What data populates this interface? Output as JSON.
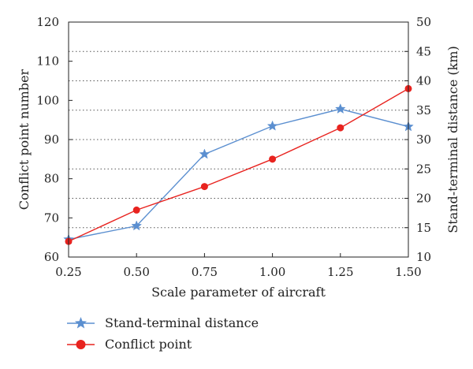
{
  "chart_data": {
    "type": "line",
    "xlabel": "Scale parameter of aircraft",
    "ylabel_left": "Conflict point number",
    "ylabel_right": "Stand-terminal distance (km)",
    "x": [
      0.25,
      0.5,
      0.75,
      1.0,
      1.25,
      1.5
    ],
    "x_tick_labels": [
      "0.25",
      "0.50",
      "0.75",
      "1.00",
      "1.25",
      "1.50"
    ],
    "xlim": [
      0.25,
      1.5
    ],
    "ylim_left": [
      60,
      120
    ],
    "ylim_right": [
      10,
      50
    ],
    "y_left_ticks": [
      60,
      70,
      80,
      90,
      100,
      110,
      120
    ],
    "y_right_ticks": [
      10,
      15,
      20,
      25,
      30,
      35,
      40,
      45,
      50
    ],
    "grid": "horizontal dotted at right-axis ticks",
    "legend_position": "bottom-left, below plot",
    "series": [
      {
        "name": "Stand-terminal distance",
        "axis": "right",
        "marker": "star",
        "color": "#5b8fd0",
        "values": [
          13.0,
          15.3,
          27.5,
          32.3,
          35.2,
          32.2
        ]
      },
      {
        "name": "Conflict point",
        "axis": "left",
        "marker": "circle",
        "color": "#e8231f",
        "values": [
          64,
          72,
          78,
          85,
          93,
          103
        ]
      }
    ]
  }
}
